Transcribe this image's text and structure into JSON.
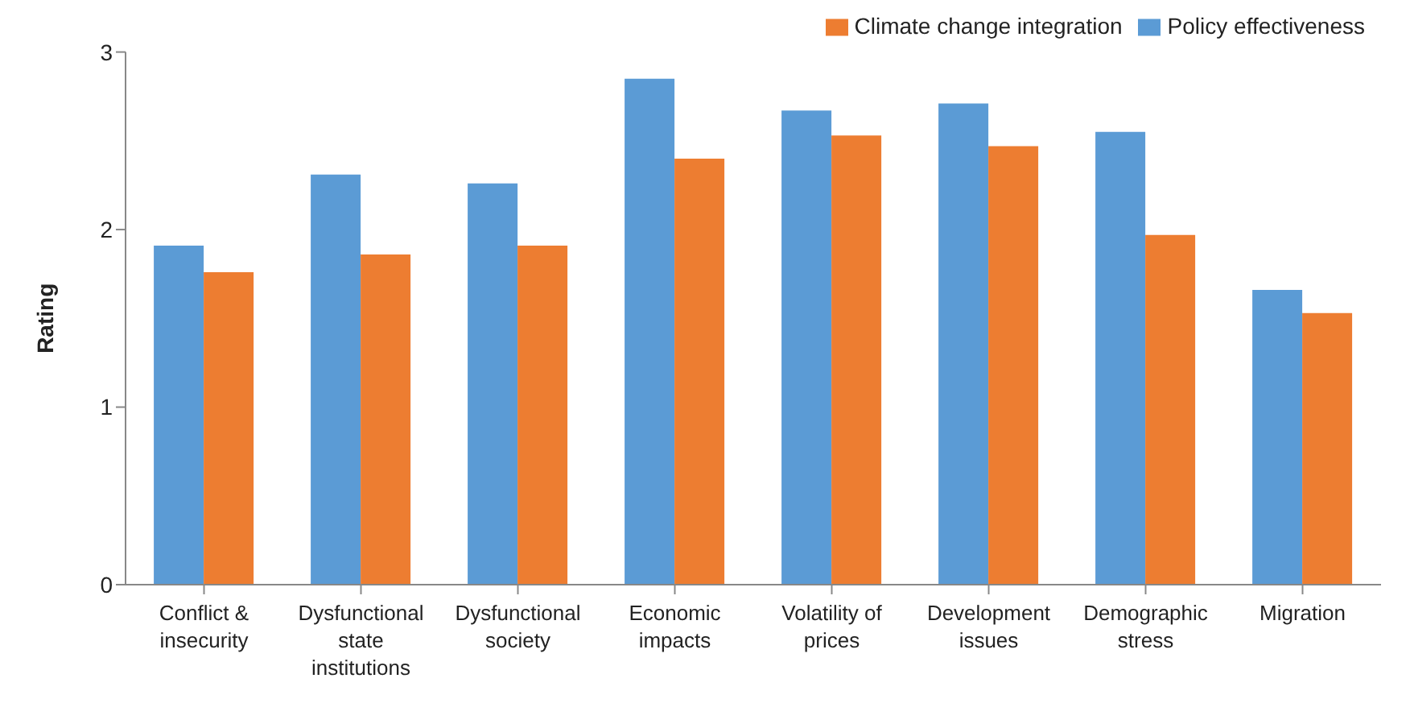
{
  "chart_data": {
    "type": "bar",
    "ylabel": "Rating",
    "categories": [
      "Conflict & insecurity",
      "Dysfunctional state institutions",
      "Dysfunctional society",
      "Economic impacts",
      "Volatility of prices",
      "Development issues",
      "Demographic stress",
      "Migration"
    ],
    "series": [
      {
        "name": "Policy effectiveness",
        "color": "#5b9bd5",
        "values": [
          1.91,
          2.31,
          2.26,
          2.85,
          2.67,
          2.71,
          2.55,
          1.66
        ]
      },
      {
        "name": "Climate change integration",
        "color": "#ed7d31",
        "values": [
          1.76,
          1.86,
          1.91,
          2.4,
          2.53,
          2.47,
          1.97,
          1.53
        ]
      }
    ],
    "ylim": [
      0,
      3
    ],
    "yticks": [
      0,
      1,
      2,
      3
    ],
    "grid": false,
    "legend": "top right"
  }
}
